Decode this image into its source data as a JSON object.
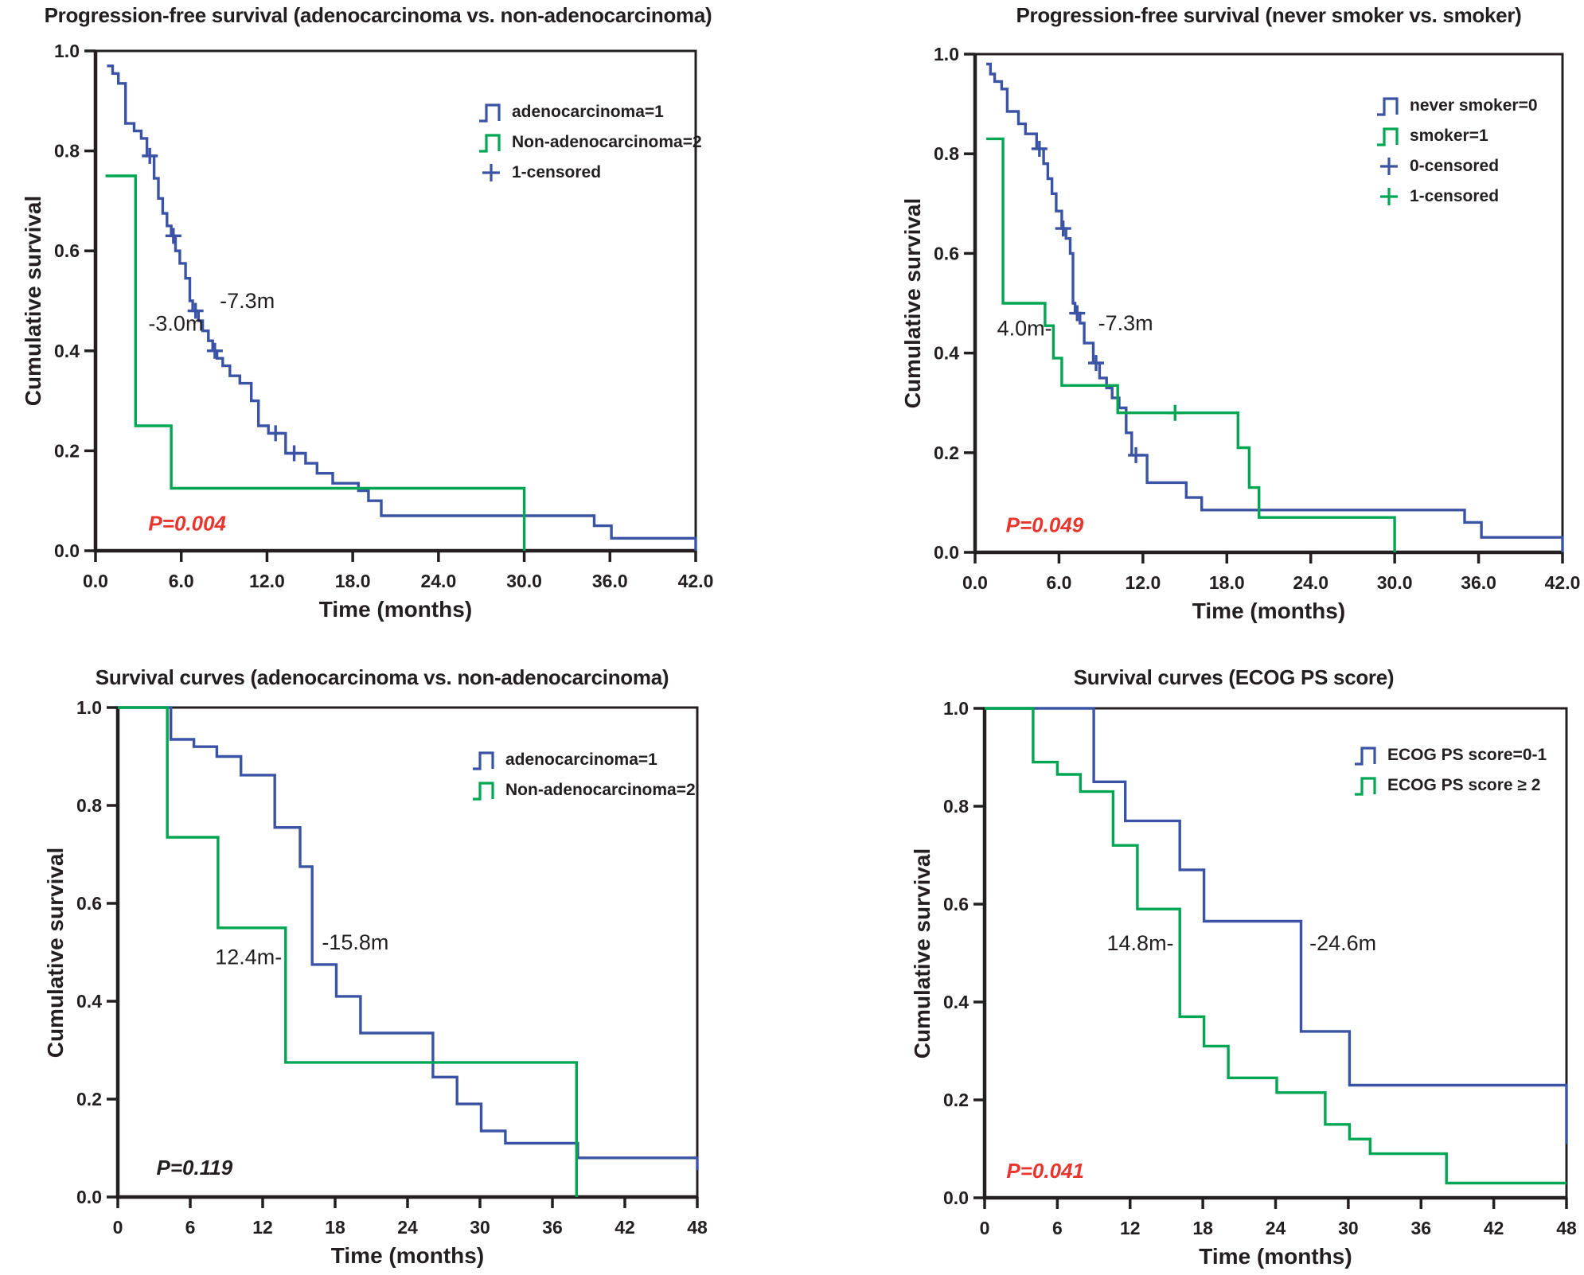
{
  "colors": {
    "blue": "#3a53a5",
    "green": "#00a651",
    "red": "#e8352d",
    "axis": "#231f20"
  },
  "chart_data": [
    {
      "id": "pfs-histology",
      "type": "line",
      "subtype": "kaplan-meier-step",
      "title": "Progression-free survival (adenocarcinoma vs. non-adenocarcinoma)",
      "xlabel": "Time (months)",
      "ylabel": "Cumulative survival",
      "xlim": [
        0,
        42
      ],
      "ylim": [
        0,
        1
      ],
      "grid": false,
      "xticks": {
        "values": [
          0,
          6,
          12,
          18,
          24,
          30,
          36,
          42
        ],
        "labels": [
          "0.0",
          "6.0",
          "12.0",
          "18.0",
          "24.0",
          "30.0",
          "36.0",
          "42.0"
        ]
      },
      "yticks": {
        "values": [
          0,
          0.2,
          0.4,
          0.6,
          0.8,
          1.0
        ],
        "labels": [
          "0.0",
          "0.2",
          "0.4",
          "0.6",
          "0.8",
          "1.0"
        ]
      },
      "legend": [
        {
          "label": "adenocarcinoma=1",
          "color": "blue",
          "glyph": "step-icon"
        },
        {
          "label": "Non-adenocarcinoma=2",
          "color": "green",
          "glyph": "step-icon"
        },
        {
          "label": "1-censored",
          "color": "blue",
          "glyph": "plus-icon"
        }
      ],
      "p_value": {
        "text": "P=0.004",
        "x": 3.7,
        "y": 0.055,
        "color": "red"
      },
      "annotations": [
        {
          "text": "-7.3m",
          "x": 8.7,
          "y": 0.5,
          "anchor": "start"
        },
        {
          "text": "-3.0m",
          "x": 3.7,
          "y": 0.455,
          "anchor": "start"
        }
      ],
      "series": [
        {
          "name": "adenocarcinoma=1",
          "color": "blue",
          "median_months": 7.3,
          "start": [
            0.8,
            0.97
          ],
          "steps": [
            [
              1.2,
              0.955
            ],
            [
              1.6,
              0.935
            ],
            [
              2.1,
              0.855
            ],
            [
              2.7,
              0.84
            ],
            [
              3.2,
              0.825
            ],
            [
              3.6,
              0.79
            ],
            [
              4.1,
              0.745
            ],
            [
              4.4,
              0.705
            ],
            [
              4.7,
              0.675
            ],
            [
              5.0,
              0.65
            ],
            [
              5.3,
              0.63
            ],
            [
              5.6,
              0.6
            ],
            [
              5.9,
              0.575
            ],
            [
              6.3,
              0.545
            ],
            [
              6.6,
              0.5
            ],
            [
              6.8,
              0.48
            ],
            [
              7.2,
              0.46
            ],
            [
              7.5,
              0.44
            ],
            [
              7.9,
              0.42
            ],
            [
              8.2,
              0.4
            ],
            [
              8.5,
              0.385
            ],
            [
              8.9,
              0.37
            ],
            [
              9.4,
              0.35
            ],
            [
              10.1,
              0.335
            ],
            [
              10.9,
              0.3
            ],
            [
              11.4,
              0.25
            ],
            [
              12.1,
              0.235
            ],
            [
              13.3,
              0.195
            ],
            [
              14.7,
              0.175
            ],
            [
              15.5,
              0.155
            ],
            [
              16.6,
              0.135
            ],
            [
              18.4,
              0.12
            ],
            [
              19.1,
              0.1
            ],
            [
              20.0,
              0.07
            ],
            [
              34.9,
              0.05
            ],
            [
              36.1,
              0.025
            ]
          ],
          "end": {
            "x": 42,
            "y": 0
          },
          "censors": [
            [
              3.8,
              0.79
            ],
            [
              5.45,
              0.63
            ],
            [
              7.0,
              0.48
            ],
            [
              8.35,
              0.4
            ],
            [
              12.6,
              0.235
            ],
            [
              13.9,
              0.195
            ]
          ]
        },
        {
          "name": "Non-adenocarcinoma=2",
          "color": "green",
          "median_months": 3.0,
          "start": [
            0.7,
            0.75
          ],
          "steps": [
            [
              2.8,
              0.25
            ],
            [
              5.3,
              0.125
            ],
            [
              30,
              0
            ]
          ],
          "end": null,
          "censors": []
        }
      ]
    },
    {
      "id": "pfs-smoking",
      "type": "line",
      "subtype": "kaplan-meier-step",
      "title": "Progression-free survival (never smoker vs. smoker)",
      "xlabel": "Time (months)",
      "ylabel": "Cumulative survival",
      "xlim": [
        0,
        42
      ],
      "ylim": [
        0,
        1
      ],
      "grid": false,
      "xticks": {
        "values": [
          0,
          6,
          12,
          18,
          24,
          30,
          36,
          42
        ],
        "labels": [
          "0.0",
          "6.0",
          "12.0",
          "18.0",
          "24.0",
          "30.0",
          "36.0",
          "42.0"
        ]
      },
      "yticks": {
        "values": [
          0,
          0.2,
          0.4,
          0.6,
          0.8,
          1.0
        ],
        "labels": [
          "0.0",
          "0.2",
          "0.4",
          "0.6",
          "0.8",
          "1.0"
        ]
      },
      "legend": [
        {
          "label": "never smoker=0",
          "color": "blue",
          "glyph": "step-icon"
        },
        {
          "label": "smoker=1",
          "color": "green",
          "glyph": "step-icon"
        },
        {
          "label": "0-censored",
          "color": "blue",
          "glyph": "plus-icon"
        },
        {
          "label": "1-censored",
          "color": "green",
          "glyph": "plus-icon"
        }
      ],
      "p_value": {
        "text": "P=0.049",
        "x": 2.2,
        "y": 0.055,
        "color": "red"
      },
      "annotations": [
        {
          "text": "-7.3m",
          "x": 8.8,
          "y": 0.46,
          "anchor": "start"
        },
        {
          "text": "4.0m-",
          "x": 5.5,
          "y": 0.45,
          "anchor": "end"
        }
      ],
      "series": [
        {
          "name": "never smoker=0",
          "color": "blue",
          "median_months": 7.3,
          "start": [
            0.8,
            0.98
          ],
          "steps": [
            [
              1.1,
              0.96
            ],
            [
              1.4,
              0.945
            ],
            [
              1.9,
              0.93
            ],
            [
              2.3,
              0.885
            ],
            [
              3.1,
              0.86
            ],
            [
              3.6,
              0.84
            ],
            [
              4.4,
              0.81
            ],
            [
              4.9,
              0.78
            ],
            [
              5.2,
              0.75
            ],
            [
              5.5,
              0.72
            ],
            [
              5.8,
              0.685
            ],
            [
              6.2,
              0.65
            ],
            [
              6.5,
              0.63
            ],
            [
              6.8,
              0.6
            ],
            [
              7.0,
              0.5
            ],
            [
              7.15,
              0.48
            ],
            [
              7.5,
              0.46
            ],
            [
              7.8,
              0.42
            ],
            [
              8.45,
              0.38
            ],
            [
              8.9,
              0.35
            ],
            [
              9.4,
              0.33
            ],
            [
              9.8,
              0.31
            ],
            [
              10.3,
              0.29
            ],
            [
              10.8,
              0.24
            ],
            [
              11.2,
              0.195
            ],
            [
              12.3,
              0.14
            ],
            [
              15.1,
              0.11
            ],
            [
              16.2,
              0.085
            ],
            [
              35.0,
              0.06
            ],
            [
              36.2,
              0.03
            ]
          ],
          "end": {
            "x": 42,
            "y": 0
          },
          "censors": [
            [
              4.6,
              0.81
            ],
            [
              6.3,
              0.65
            ],
            [
              7.3,
              0.48
            ],
            [
              8.65,
              0.38
            ],
            [
              11.5,
              0.195
            ]
          ]
        },
        {
          "name": "smoker=1",
          "color": "green",
          "median_months": 4.0,
          "start": [
            0.8,
            0.83
          ],
          "steps": [
            [
              2.0,
              0.5
            ],
            [
              5.0,
              0.455
            ],
            [
              5.6,
              0.39
            ],
            [
              6.2,
              0.335
            ],
            [
              10.2,
              0.28
            ],
            [
              18.8,
              0.21
            ],
            [
              19.6,
              0.13
            ],
            [
              20.3,
              0.07
            ],
            [
              30,
              0
            ]
          ],
          "end": null,
          "censors": [
            [
              14.3,
              0.28
            ]
          ]
        }
      ]
    },
    {
      "id": "os-histology",
      "type": "line",
      "subtype": "kaplan-meier-step",
      "title": "Survival curves (adenocarcinoma vs. non-adenocarcinoma)",
      "xlabel": "Time (months)",
      "ylabel": "Cumulative survival",
      "xlim": [
        0,
        48
      ],
      "ylim": [
        0,
        1
      ],
      "grid": false,
      "xticks": {
        "values": [
          0,
          6,
          12,
          18,
          24,
          30,
          36,
          42,
          48
        ],
        "labels": [
          "0",
          "6",
          "12",
          "18",
          "24",
          "30",
          "36",
          "42",
          "48"
        ]
      },
      "yticks": {
        "values": [
          0,
          0.2,
          0.4,
          0.6,
          0.8,
          1.0
        ],
        "labels": [
          "0.0",
          "0.2",
          "0.4",
          "0.6",
          "0.8",
          "1.0"
        ]
      },
      "legend": [
        {
          "label": "adenocarcinoma=1",
          "color": "blue",
          "glyph": "step-icon"
        },
        {
          "label": "Non-adenocarcinoma=2",
          "color": "green",
          "glyph": "step-icon"
        }
      ],
      "p_value": {
        "text": "P=0.119",
        "x": 3.2,
        "y": 0.06,
        "color": "axis"
      },
      "annotations": [
        {
          "text": "12.4m-",
          "x": 13.6,
          "y": 0.49,
          "anchor": "end"
        },
        {
          "text": "-15.8m",
          "x": 16.9,
          "y": 0.52,
          "anchor": "start"
        }
      ],
      "series": [
        {
          "name": "adenocarcinoma=1",
          "color": "blue",
          "median_months": 15.8,
          "start": [
            0,
            1.0
          ],
          "steps": [
            [
              4.4,
              0.935
            ],
            [
              6.3,
              0.92
            ],
            [
              8.2,
              0.9
            ],
            [
              10.2,
              0.862
            ],
            [
              13.0,
              0.755
            ],
            [
              15.1,
              0.675
            ],
            [
              16.1,
              0.475
            ],
            [
              18.1,
              0.41
            ],
            [
              20.1,
              0.335
            ],
            [
              26.1,
              0.245
            ],
            [
              28.1,
              0.19
            ],
            [
              30.1,
              0.135
            ],
            [
              32.1,
              0.11
            ],
            [
              38.1,
              0.08
            ]
          ],
          "end": {
            "x": 48,
            "y": 0.055
          },
          "censors": []
        },
        {
          "name": "Non-adenocarcinoma=2",
          "color": "green",
          "median_months": 12.4,
          "start": [
            0,
            1.0
          ],
          "steps": [
            [
              4.1,
              0.735
            ],
            [
              8.3,
              0.55
            ],
            [
              13.9,
              0.275
            ],
            [
              38.0,
              0
            ]
          ],
          "end": null,
          "censors": []
        }
      ]
    },
    {
      "id": "os-ecog",
      "type": "line",
      "subtype": "kaplan-meier-step",
      "title": "Survival curves (ECOG PS score)",
      "xlabel": "Time (months)",
      "ylabel": "Cumulative survival",
      "xlim": [
        0,
        48
      ],
      "ylim": [
        0,
        1
      ],
      "grid": false,
      "xticks": {
        "values": [
          0,
          6,
          12,
          18,
          24,
          30,
          36,
          42,
          48
        ],
        "labels": [
          "0",
          "6",
          "12",
          "18",
          "24",
          "30",
          "36",
          "42",
          "48"
        ]
      },
      "yticks": {
        "values": [
          0,
          0.2,
          0.4,
          0.6,
          0.8,
          1.0
        ],
        "labels": [
          "0.0",
          "0.2",
          "0.4",
          "0.6",
          "0.8",
          "1.0"
        ]
      },
      "legend": [
        {
          "label": "ECOG PS score=0-1",
          "color": "blue",
          "glyph": "step-icon"
        },
        {
          "label": "ECOG PS score ≥ 2",
          "color": "green",
          "glyph": "step-icon"
        }
      ],
      "p_value": {
        "text": "P=0.041",
        "x": 1.8,
        "y": 0.055,
        "color": "red"
      },
      "annotations": [
        {
          "text": "14.8m-",
          "x": 15.6,
          "y": 0.52,
          "anchor": "end"
        },
        {
          "text": "-24.6m",
          "x": 26.8,
          "y": 0.52,
          "anchor": "start"
        }
      ],
      "series": [
        {
          "name": "ECOG PS score=0-1",
          "color": "blue",
          "median_months": 24.6,
          "start": [
            0,
            1.0
          ],
          "steps": [
            [
              9.0,
              0.85
            ],
            [
              11.6,
              0.77
            ],
            [
              16.1,
              0.67
            ],
            [
              18.1,
              0.565
            ],
            [
              26.1,
              0.34
            ],
            [
              30.1,
              0.23
            ]
          ],
          "end": {
            "x": 48,
            "y": 0.11
          },
          "censors": []
        },
        {
          "name": "ECOG PS score ≥ 2",
          "color": "green",
          "median_months": 14.8,
          "start": [
            0,
            1.0
          ],
          "steps": [
            [
              4.0,
              0.89
            ],
            [
              6.0,
              0.865
            ],
            [
              7.9,
              0.83
            ],
            [
              10.6,
              0.72
            ],
            [
              12.6,
              0.59
            ],
            [
              16.1,
              0.37
            ],
            [
              18.1,
              0.31
            ],
            [
              20.1,
              0.245
            ],
            [
              24.1,
              0.215
            ],
            [
              28.1,
              0.15
            ],
            [
              30.1,
              0.12
            ],
            [
              31.8,
              0.09
            ],
            [
              38.1,
              0.03
            ]
          ],
          "end": {
            "x": 48,
            "y": null
          },
          "censors": []
        }
      ]
    }
  ]
}
